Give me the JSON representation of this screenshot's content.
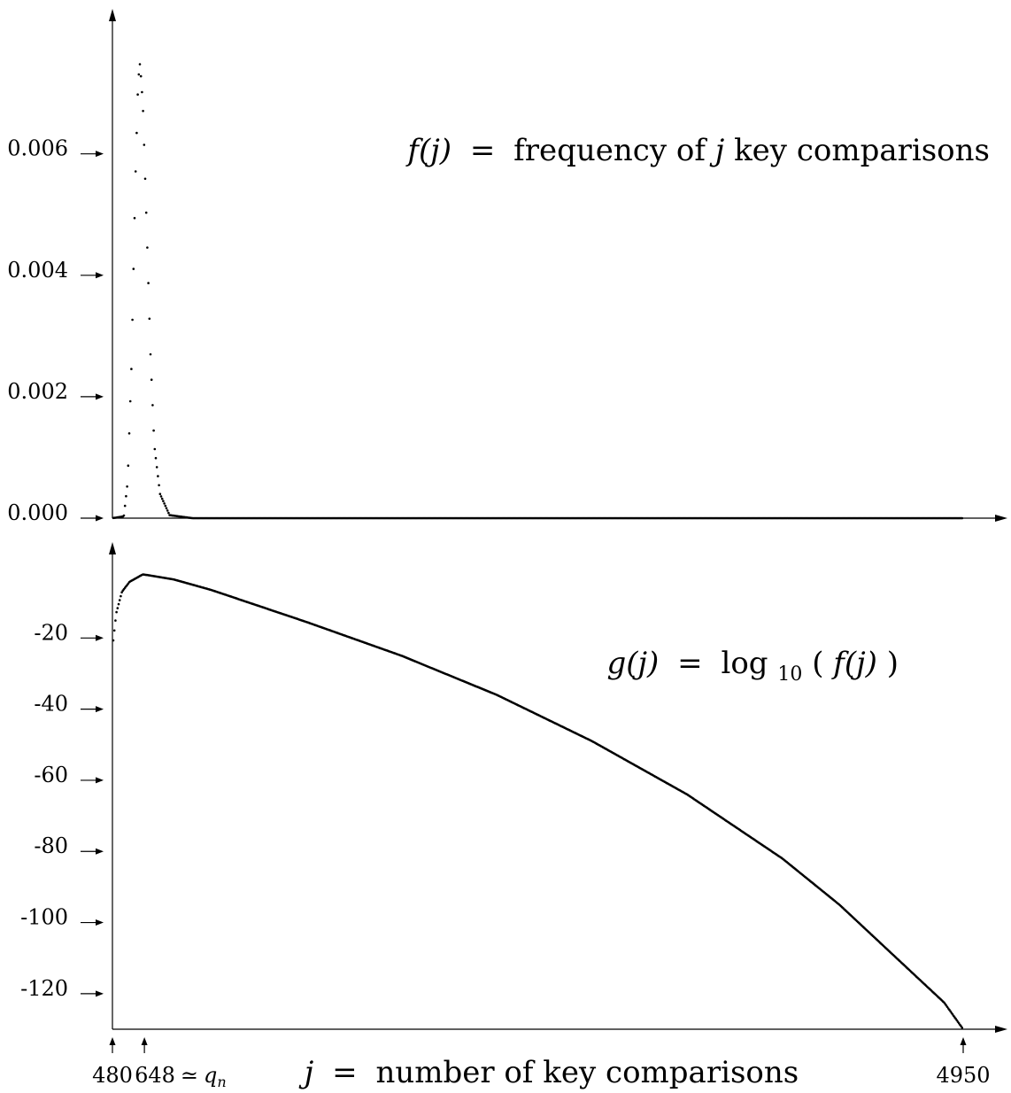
{
  "chart_data": [
    {
      "type": "scatter",
      "name_formula": {
        "lhs": "f(j)",
        "eq": "=",
        "rhs_pre": "frequency of ",
        "rhs_var": "j",
        "rhs_post": " key comparisons"
      },
      "xlim": [
        480,
        4950
      ],
      "ylim": [
        0,
        0.0076
      ],
      "y_ticks": [
        "0.000",
        "0.002",
        "0.004",
        "0.006"
      ],
      "y_tick_values": [
        0,
        0.002,
        0.004,
        0.006
      ],
      "peak": {
        "x": 620,
        "y": 0.0075
      },
      "curve_points": [
        [
          480,
          0
        ],
        [
          540,
          3e-05
        ],
        [
          560,
          0.0006
        ],
        [
          580,
          0.0025
        ],
        [
          600,
          0.0055
        ],
        [
          615,
          0.0072
        ],
        [
          625,
          0.0075
        ],
        [
          640,
          0.0068
        ],
        [
          660,
          0.0048
        ],
        [
          680,
          0.0027
        ],
        [
          700,
          0.0012
        ],
        [
          730,
          0.0004
        ],
        [
          780,
          5e-05
        ],
        [
          900,
          0
        ],
        [
          4950,
          0
        ]
      ],
      "grid": false
    },
    {
      "type": "scatter",
      "name_formula": {
        "lhs": "g(j)",
        "eq": "=",
        "rhs_func": "log",
        "rhs_sub": "10",
        "rhs_arg_open": "( ",
        "rhs_arg": "f(j)",
        "rhs_arg_close": " )"
      },
      "xlim": [
        480,
        4950
      ],
      "ylim": [
        -130,
        0
      ],
      "y_ticks": [
        "-20",
        "-40",
        "-60",
        "-80",
        "-100",
        "-120"
      ],
      "y_tick_values": [
        -20,
        -40,
        -60,
        -80,
        -100,
        -120
      ],
      "curve_points": [
        [
          480,
          -23
        ],
        [
          500,
          -13
        ],
        [
          530,
          -7
        ],
        [
          570,
          -4.2
        ],
        [
          640,
          -2.1
        ],
        [
          800,
          -3.5
        ],
        [
          1000,
          -6.5
        ],
        [
          1500,
          -15.5
        ],
        [
          2000,
          -25
        ],
        [
          2500,
          -36
        ],
        [
          3000,
          -49
        ],
        [
          3500,
          -64
        ],
        [
          4000,
          -82
        ],
        [
          4300,
          -95
        ],
        [
          4500,
          -105
        ],
        [
          4700,
          -115
        ],
        [
          4850,
          -122.5
        ],
        [
          4950,
          -130
        ]
      ],
      "grid": false
    }
  ],
  "x_axis": {
    "label_var": "j",
    "label_eq": "=",
    "label_text": "number of key comparisons",
    "tick_values": [
      480,
      648,
      4950
    ],
    "tick_labels": [
      "480",
      "648",
      "4950"
    ],
    "mid_tick_suffix_sym": "≃",
    "mid_tick_suffix_var": "q",
    "mid_tick_suffix_sub": "n"
  }
}
